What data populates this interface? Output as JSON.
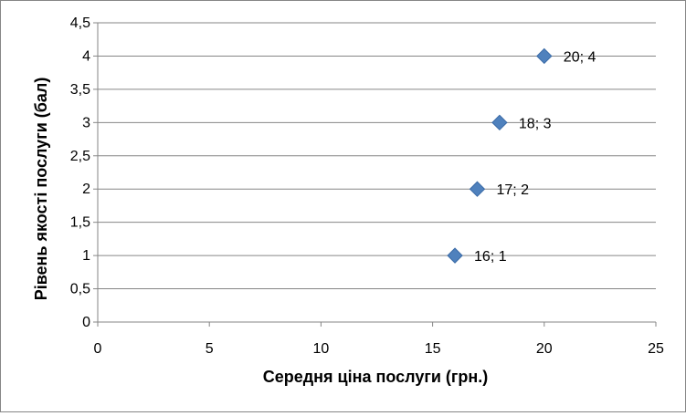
{
  "chart_data": {
    "type": "scatter",
    "title": "",
    "xlabel": "Середня ціна послуги (грн.)",
    "ylabel": "Рівень якості послуги (бал)",
    "xlim": [
      0,
      25
    ],
    "ylim": [
      0,
      4.5
    ],
    "x_ticks": [
      "0",
      "5",
      "10",
      "15",
      "20",
      "25"
    ],
    "y_ticks": [
      "0",
      "0,5",
      "1",
      "1,5",
      "2",
      "2,5",
      "3",
      "3,5",
      "4",
      "4,5"
    ],
    "x_tick_values": [
      0,
      5,
      10,
      15,
      20,
      25
    ],
    "y_tick_values": [
      0,
      0.5,
      1,
      1.5,
      2,
      2.5,
      3,
      3.5,
      4,
      4.5
    ],
    "grid": "horizontal",
    "legend": "none",
    "marker": "diamond",
    "marker_color": "#4F81BD",
    "series": [
      {
        "points": [
          {
            "x": 16,
            "y": 1,
            "label": "16; 1"
          },
          {
            "x": 17,
            "y": 2,
            "label": "17; 2"
          },
          {
            "x": 18,
            "y": 3,
            "label": "18; 3"
          },
          {
            "x": 20,
            "y": 4,
            "label": "20; 4"
          }
        ]
      }
    ]
  }
}
